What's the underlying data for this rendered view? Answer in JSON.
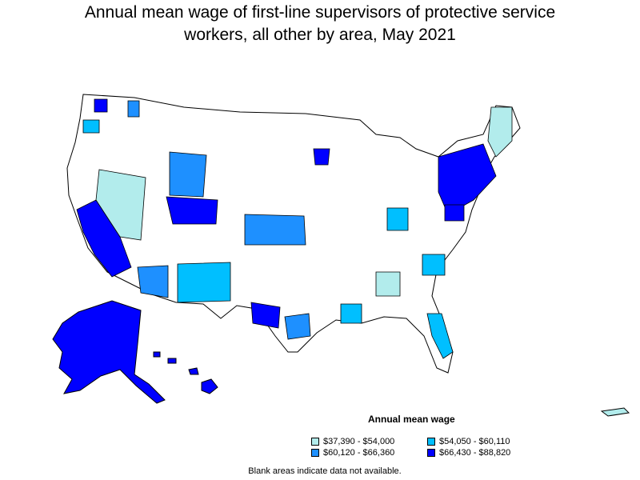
{
  "title": {
    "line1": "Annual mean wage of first-line supervisors of protective service",
    "line2": "workers, all other by area, May 2021"
  },
  "legend": {
    "title": "Annual mean wage",
    "items": [
      {
        "label": "$37,390 - $54,000",
        "color": "#b2ecec"
      },
      {
        "label": "$54,050 - $60,110",
        "color": "#00bfff"
      },
      {
        "label": "$60,120 - $66,360",
        "color": "#1e90ff"
      },
      {
        "label": "$66,430 - $88,820",
        "color": "#0000ff"
      }
    ]
  },
  "footnote": "Blank areas indicate data not available.",
  "colors": {
    "blank": "#ffffff",
    "outline": "#000000"
  }
}
